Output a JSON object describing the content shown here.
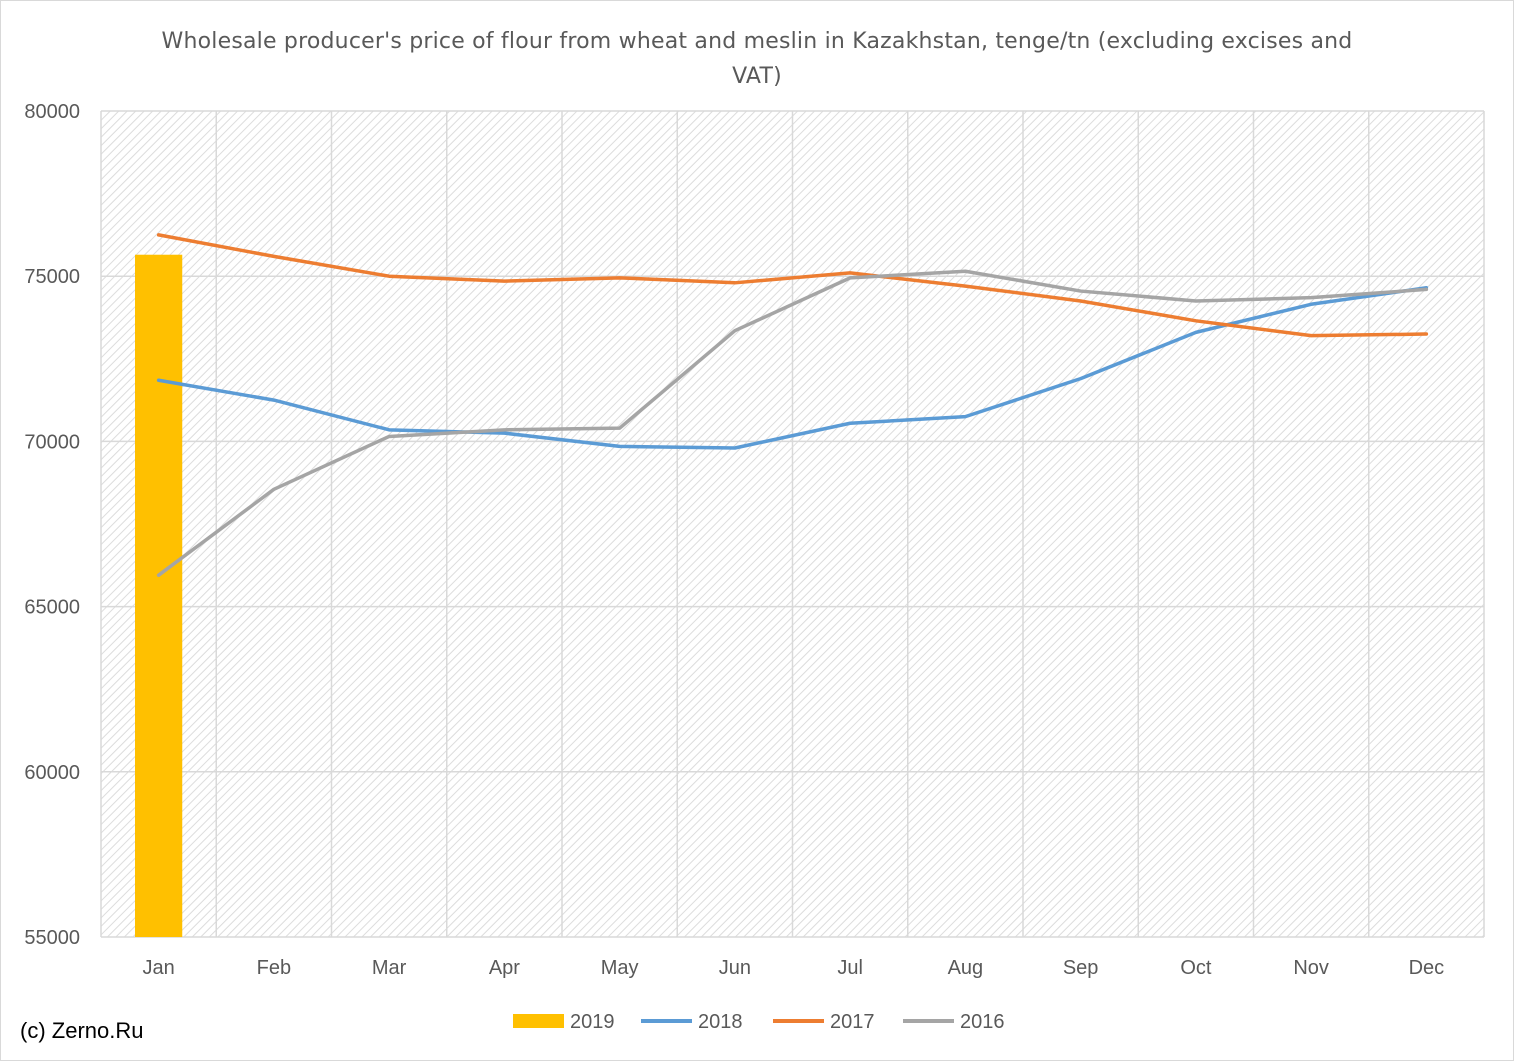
{
  "chart_data": {
    "type": "bar+line",
    "title": "Wholesale producer's price of flour from wheat and meslin in Kazakhstan, tenge/tn (excluding excises and VAT)",
    "categories": [
      "Jan",
      "Feb",
      "Mar",
      "Apr",
      "May",
      "Jun",
      "Jul",
      "Aug",
      "Sep",
      "Oct",
      "Nov",
      "Dec"
    ],
    "ylim": [
      55000,
      80000
    ],
    "yticks": [
      55000,
      60000,
      65000,
      70000,
      75000,
      80000
    ],
    "grid": true,
    "legend_position": "bottom",
    "bar_series": [
      {
        "name": "2019",
        "color": "#FFC000",
        "values": [
          75650,
          null,
          null,
          null,
          null,
          null,
          null,
          null,
          null,
          null,
          null,
          null
        ]
      }
    ],
    "line_series": [
      {
        "name": "2018",
        "color": "#5B9BD5",
        "values": [
          71850,
          71250,
          70350,
          70250,
          69850,
          69800,
          70550,
          70750,
          71900,
          73300,
          74150,
          74650
        ]
      },
      {
        "name": "2017",
        "color": "#ED7D31",
        "values": [
          76250,
          75600,
          75000,
          74850,
          74950,
          74800,
          75100,
          74700,
          74250,
          73650,
          73200,
          73250
        ]
      },
      {
        "name": "2016",
        "color": "#A5A5A5",
        "values": [
          65950,
          68550,
          70150,
          70350,
          70400,
          73350,
          74950,
          75150,
          74550,
          74250,
          74350,
          74600
        ]
      }
    ],
    "legend_order": [
      "2019",
      "2018",
      "2017",
      "2016"
    ]
  },
  "credit": "(c) Zerno.Ru"
}
